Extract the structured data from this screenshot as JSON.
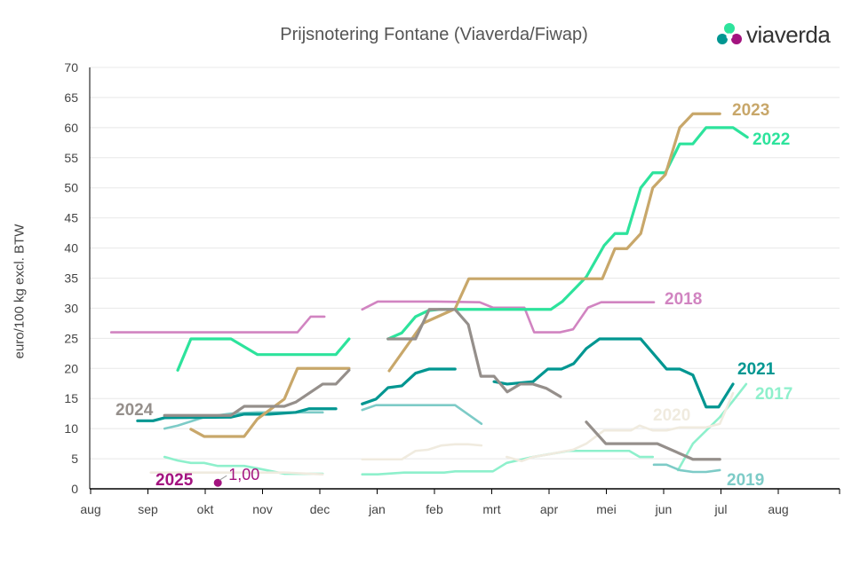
{
  "logo": {
    "text": "viaverda"
  },
  "chart_data": {
    "type": "line",
    "title": "Prijsnotering Fontane (Viaverda/Fiwap)",
    "xlabel": "",
    "ylabel": "euro/100 kg excl. BTW",
    "ylim": [
      0,
      70
    ],
    "yticks": [
      0,
      5,
      10,
      15,
      20,
      25,
      30,
      35,
      40,
      45,
      50,
      55,
      60,
      65,
      70
    ],
    "x_unit": "months since start of August",
    "xlim": [
      0,
      13.07
    ],
    "xtick_labels": [
      "aug",
      "sep",
      "okt",
      "nov",
      "dec",
      "jan",
      "feb",
      "mrt",
      "apr",
      "mei",
      "jun",
      "jul",
      "aug"
    ],
    "grid": "horizontal",
    "series": [
      {
        "name": "2017",
        "color": "#8ef0cc",
        "segments": [
          [
            [
              1.29,
              5.3
            ],
            [
              1.52,
              4.7
            ],
            [
              1.75,
              4.3
            ],
            [
              1.98,
              4.3
            ],
            [
              2.22,
              3.8
            ],
            [
              2.68,
              3.8
            ],
            [
              2.91,
              3.4
            ],
            [
              3.38,
              2.5
            ],
            [
              4.05,
              2.5
            ]
          ],
          [
            [
              4.74,
              2.4
            ],
            [
              5.01,
              2.4
            ],
            [
              5.47,
              2.7
            ],
            [
              6.17,
              2.7
            ],
            [
              6.36,
              2.9
            ],
            [
              7.02,
              2.9
            ],
            [
              7.26,
              4.3
            ],
            [
              7.72,
              5.3
            ],
            [
              8.34,
              6.3
            ],
            [
              8.96,
              6.3
            ],
            [
              9.4,
              6.3
            ],
            [
              9.58,
              5.3
            ],
            [
              9.81,
              5.3
            ]
          ],
          [
            [
              10.25,
              3.1
            ],
            [
              10.51,
              7.5
            ],
            [
              10.98,
              11.9
            ],
            [
              11.21,
              14.6
            ],
            [
              11.44,
              17.4
            ]
          ]
        ]
      },
      {
        "name": "2018",
        "color": "#d184c1",
        "segments": [
          [
            [
              0.36,
              26
            ],
            [
              3.61,
              26
            ],
            [
              3.84,
              28.6
            ],
            [
              4.08,
              28.6
            ]
          ],
          [
            [
              4.74,
              29.8
            ],
            [
              5.01,
              31.1
            ],
            [
              6.02,
              31.1
            ],
            [
              6.79,
              31
            ],
            [
              7.02,
              30.1
            ],
            [
              7.57,
              30.1
            ],
            [
              7.74,
              26
            ],
            [
              8.19,
              26
            ],
            [
              8.42,
              26.5
            ],
            [
              8.68,
              30.1
            ],
            [
              8.91,
              31
            ],
            [
              9.83,
              31
            ]
          ]
        ]
      },
      {
        "name": "2019",
        "color": "#7dcbc7",
        "segments": [
          [
            [
              1.29,
              10
            ],
            [
              1.52,
              10.5
            ],
            [
              1.98,
              11.9
            ],
            [
              2.45,
              12.5
            ],
            [
              2.91,
              12.7
            ],
            [
              4.05,
              12.7
            ]
          ],
          [
            [
              4.74,
              13.1
            ],
            [
              4.98,
              13.9
            ],
            [
              6.36,
              13.9
            ],
            [
              6.82,
              10.8
            ]
          ],
          [
            [
              9.83,
              4
            ],
            [
              10.05,
              4
            ],
            [
              10.28,
              3.1
            ],
            [
              10.51,
              2.8
            ],
            [
              10.74,
              2.8
            ],
            [
              10.98,
              3.1
            ]
          ]
        ]
      },
      {
        "name": "2020",
        "color": "#f0ebdf",
        "segments": [
          [
            [
              1.05,
              2.7
            ],
            [
              3.38,
              2.7
            ],
            [
              4.05,
              2.4
            ]
          ],
          [
            [
              4.74,
              4.9
            ],
            [
              5.43,
              4.9
            ],
            [
              5.67,
              6.3
            ],
            [
              5.89,
              6.5
            ],
            [
              6.12,
              7.2
            ],
            [
              6.36,
              7.4
            ],
            [
              6.59,
              7.4
            ],
            [
              6.82,
              7.2
            ]
          ],
          [
            [
              7.26,
              5.3
            ],
            [
              7.52,
              4.6
            ],
            [
              7.72,
              5.3
            ],
            [
              7.98,
              5.7
            ],
            [
              8.42,
              6.5
            ],
            [
              8.65,
              7.5
            ],
            [
              8.96,
              9.7
            ],
            [
              9.43,
              9.7
            ],
            [
              9.58,
              10.5
            ],
            [
              9.81,
              9.7
            ],
            [
              10.05,
              9.7
            ],
            [
              10.28,
              10.2
            ],
            [
              10.74,
              10.2
            ],
            [
              10.98,
              10.8
            ],
            [
              11.21,
              15.9
            ]
          ]
        ]
      },
      {
        "name": "2021",
        "color": "#009691",
        "segments": [
          [
            [
              0.82,
              11.3
            ],
            [
              1.09,
              11.3
            ],
            [
              1.29,
              11.8
            ],
            [
              2.45,
              11.9
            ],
            [
              2.68,
              12.4
            ],
            [
              3.12,
              12.4
            ],
            [
              3.58,
              12.7
            ],
            [
              3.81,
              13.3
            ],
            [
              4.28,
              13.3
            ]
          ],
          [
            [
              4.74,
              14.1
            ],
            [
              4.98,
              14.9
            ],
            [
              5.19,
              16.8
            ],
            [
              5.43,
              17.1
            ],
            [
              5.67,
              19.2
            ],
            [
              5.91,
              19.9
            ],
            [
              6.36,
              19.9
            ]
          ],
          [
            [
              7.04,
              17.8
            ],
            [
              7.27,
              17.4
            ],
            [
              7.72,
              17.8
            ],
            [
              7.98,
              19.9
            ],
            [
              8.22,
              19.9
            ],
            [
              8.43,
              20.8
            ],
            [
              8.65,
              23.3
            ],
            [
              8.88,
              24.9
            ],
            [
              9.6,
              24.9
            ],
            [
              10.05,
              19.9
            ],
            [
              10.28,
              19.9
            ],
            [
              10.51,
              18.9
            ],
            [
              10.74,
              13.6
            ],
            [
              10.96,
              13.6
            ],
            [
              11.21,
              17.4
            ]
          ]
        ]
      },
      {
        "name": "2022",
        "color": "#2de39c",
        "segments": [
          [
            [
              1.52,
              19.7
            ],
            [
              1.75,
              24.9
            ],
            [
              2.45,
              24.9
            ],
            [
              2.91,
              22.3
            ],
            [
              4.28,
              22.3
            ],
            [
              4.51,
              24.9
            ]
          ],
          [
            [
              5.19,
              24.9
            ],
            [
              5.43,
              25.9
            ],
            [
              5.67,
              28.6
            ],
            [
              5.89,
              29.6
            ],
            [
              6.09,
              29.8
            ],
            [
              8.03,
              29.8
            ],
            [
              8.23,
              31.1
            ],
            [
              8.65,
              35.2
            ],
            [
              8.96,
              40.4
            ],
            [
              9.15,
              42.4
            ],
            [
              9.36,
              42.4
            ],
            [
              9.6,
              50
            ],
            [
              9.81,
              52.5
            ],
            [
              10.03,
              52.5
            ],
            [
              10.28,
              57.3
            ],
            [
              10.51,
              57.3
            ],
            [
              10.74,
              60
            ],
            [
              11.21,
              60
            ],
            [
              11.46,
              58.4
            ]
          ]
        ]
      },
      {
        "name": "2023",
        "color": "#c8a76a",
        "segments": [
          [
            [
              1.75,
              9.9
            ],
            [
              1.98,
              8.7
            ],
            [
              2.68,
              8.7
            ],
            [
              2.91,
              11.6
            ],
            [
              3.38,
              14.9
            ],
            [
              3.61,
              20
            ],
            [
              4.51,
              20
            ]
          ],
          [
            [
              5.21,
              19.6
            ],
            [
              5.8,
              27.5
            ],
            [
              6.36,
              29.9
            ],
            [
              6.6,
              34.9
            ],
            [
              8.93,
              34.9
            ],
            [
              9.15,
              39.9
            ],
            [
              9.36,
              39.9
            ],
            [
              9.6,
              42.4
            ],
            [
              9.81,
              50
            ],
            [
              10.03,
              52.2
            ],
            [
              10.28,
              60
            ],
            [
              10.51,
              62.3
            ],
            [
              10.98,
              62.3
            ]
          ]
        ]
      },
      {
        "name": "2024",
        "color": "#958f8b",
        "segments": [
          [
            [
              1.29,
              12.2
            ],
            [
              2.45,
              12.2
            ],
            [
              2.68,
              13.7
            ],
            [
              3.38,
              13.7
            ],
            [
              3.58,
              14.4
            ],
            [
              4.05,
              17.4
            ],
            [
              4.28,
              17.4
            ],
            [
              4.51,
              19.7
            ]
          ],
          [
            [
              5.19,
              24.9
            ],
            [
              5.67,
              24.9
            ],
            [
              5.91,
              29.8
            ],
            [
              6.36,
              29.8
            ],
            [
              6.59,
              27.3
            ],
            [
              6.81,
              18.7
            ],
            [
              7.04,
              18.7
            ],
            [
              7.27,
              16.1
            ],
            [
              7.5,
              17.4
            ],
            [
              7.72,
              17.4
            ],
            [
              7.95,
              16.7
            ],
            [
              8.2,
              15.3
            ]
          ],
          [
            [
              8.65,
              11.1
            ],
            [
              8.99,
              7.5
            ],
            [
              9.89,
              7.5
            ],
            [
              10.51,
              4.9
            ],
            [
              10.98,
              4.9
            ]
          ]
        ]
      },
      {
        "name": "2025",
        "color": "#a3137f",
        "segments": [
          [
            [
              2.22,
              1.0
            ]
          ]
        ],
        "point_label": "1,00"
      }
    ]
  }
}
